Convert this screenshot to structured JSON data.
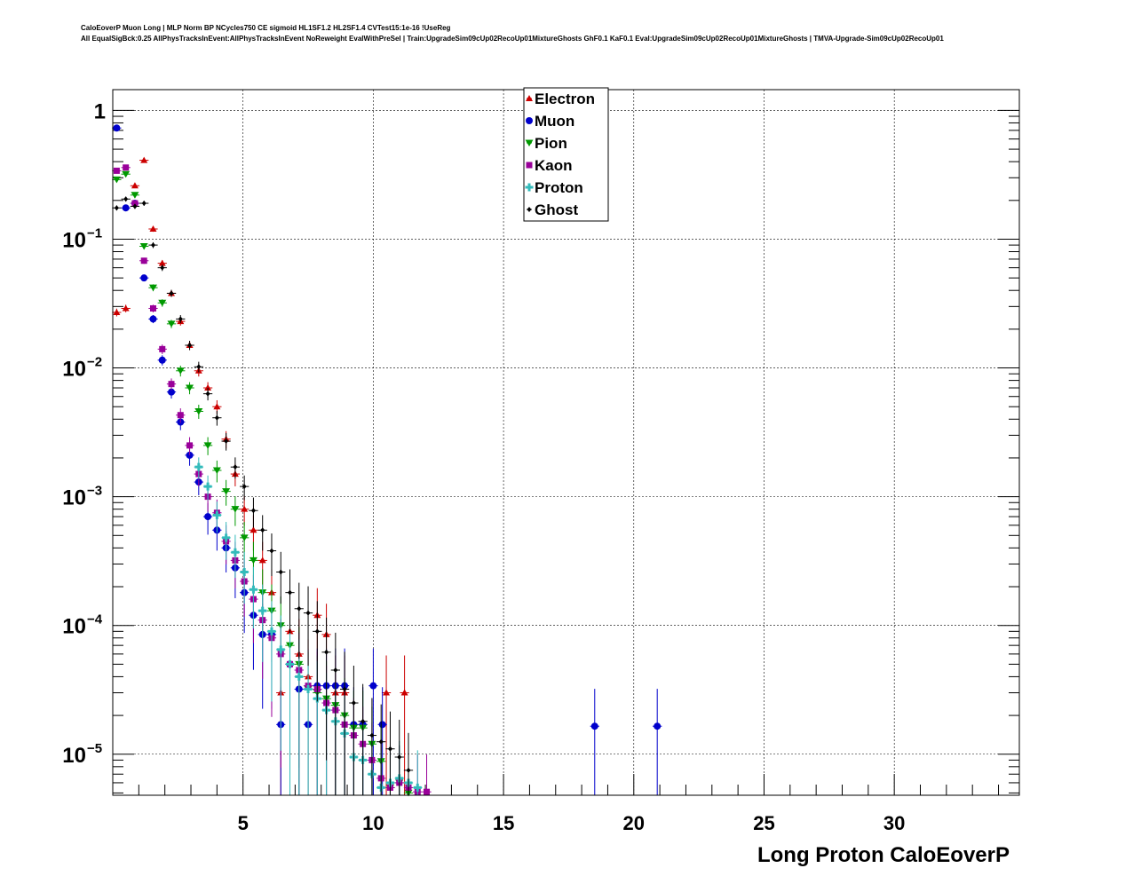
{
  "title_lines": [
    "CaloEoverP Muon Long | MLP Norm BP NCycles750 CE sigmoid HL1SF1.2 HL2SF1.4 CVTest15:1e-16 !UseReg",
    "All EqualSigBck:0.25 AllPhysTracksInEvent:AllPhysTracksInEvent NoReweight EvalWithPreSel | Train:UpgradeSim09cUp02RecoUp01MixtureGhosts GhF0.1 KaF0.1 Eval:UpgradeSim09cUp02RecoUp01MixtureGhosts | TMVA-Upgrade-Sim09cUp02RecoUp01"
  ],
  "chart_data": {
    "type": "scatter",
    "title": "CaloEoverP Muon Long | MLP Norm BP NCycles750 CE sigmoid HL1SF1.2 HL2SF1.4 CVTest15:1e-16 !UseReg",
    "xlabel": "Long Proton CaloEoverP",
    "ylabel": "",
    "xlim": [
      0,
      34.8
    ],
    "ylim": [
      4.8e-06,
      1.45
    ],
    "y_scale": "log",
    "grid": true,
    "legend_position": "top-center",
    "x_ticks": [
      5,
      10,
      15,
      20,
      25,
      30
    ],
    "x_tick_labels": [
      "5",
      "10",
      "15",
      "20",
      "25",
      "30"
    ],
    "y_ticks": [
      1,
      0.1,
      0.01,
      0.001,
      0.0001,
      1e-05
    ],
    "y_tick_labels": [
      {
        "base": "1",
        "exp": ""
      },
      {
        "base": "10",
        "exp": "−1"
      },
      {
        "base": "10",
        "exp": "−2"
      },
      {
        "base": "10",
        "exp": "−3"
      },
      {
        "base": "10",
        "exp": "−4"
      },
      {
        "base": "10",
        "exp": "−5"
      }
    ],
    "series": [
      {
        "name": "Electron",
        "color": "#cc0000",
        "marker": "triangle-up",
        "points": [
          [
            0.15,
            0.027
          ],
          [
            0.5,
            0.029
          ],
          [
            0.85,
            0.26
          ],
          [
            1.2,
            0.41
          ],
          [
            1.55,
            0.12
          ],
          [
            1.9,
            0.065
          ],
          [
            2.25,
            0.038
          ],
          [
            2.6,
            0.023
          ],
          [
            2.95,
            0.015
          ],
          [
            3.3,
            0.0095
          ],
          [
            3.65,
            0.007
          ],
          [
            4.0,
            0.005
          ],
          [
            4.35,
            0.0028
          ],
          [
            4.7,
            0.0015
          ],
          [
            5.05,
            0.0008
          ],
          [
            5.4,
            0.00055
          ],
          [
            5.75,
            0.00032
          ],
          [
            6.1,
            0.00018
          ],
          [
            6.45,
            3e-05
          ],
          [
            6.8,
            9e-05
          ],
          [
            7.15,
            6e-05
          ],
          [
            7.5,
            4e-05
          ],
          [
            7.85,
            0.00012
          ],
          [
            8.2,
            8.5e-05
          ],
          [
            8.55,
            3e-05
          ],
          [
            8.9,
            3e-05
          ],
          [
            10.5,
            3e-05
          ],
          [
            11.2,
            3e-05
          ]
        ]
      },
      {
        "name": "Muon",
        "color": "#0000cc",
        "marker": "circle",
        "points": [
          [
            0.15,
            0.73
          ],
          [
            0.5,
            0.175
          ],
          [
            0.85,
            0.19
          ],
          [
            1.2,
            0.05
          ],
          [
            1.55,
            0.024
          ],
          [
            1.9,
            0.0115
          ],
          [
            2.25,
            0.0065
          ],
          [
            2.6,
            0.0038
          ],
          [
            2.95,
            0.0021
          ],
          [
            3.3,
            0.0013
          ],
          [
            3.65,
            0.0007
          ],
          [
            4.0,
            0.00055
          ],
          [
            4.35,
            0.0004
          ],
          [
            4.7,
            0.00028
          ],
          [
            5.05,
            0.00018
          ],
          [
            5.4,
            0.00012
          ],
          [
            5.75,
            8.5e-05
          ],
          [
            6.1,
            8.5e-05
          ],
          [
            6.45,
            1.7e-05
          ],
          [
            6.8,
            5e-05
          ],
          [
            7.15,
            3.2e-05
          ],
          [
            7.5,
            1.7e-05
          ],
          [
            7.85,
            3.4e-05
          ],
          [
            8.2,
            3.4e-05
          ],
          [
            8.55,
            3.4e-05
          ],
          [
            8.9,
            3.4e-05
          ],
          [
            9.25,
            1.7e-05
          ],
          [
            9.6,
            1.7e-05
          ],
          [
            10.0,
            3.4e-05
          ],
          [
            10.35,
            1.7e-05
          ],
          [
            18.5,
            1.65e-05
          ],
          [
            20.9,
            1.65e-05
          ]
        ]
      },
      {
        "name": "Pion",
        "color": "#009900",
        "marker": "triangle-down",
        "points": [
          [
            0.15,
            0.29
          ],
          [
            0.5,
            0.32
          ],
          [
            0.85,
            0.22
          ],
          [
            1.2,
            0.088
          ],
          [
            1.55,
            0.042
          ],
          [
            1.9,
            0.032
          ],
          [
            2.25,
            0.022
          ],
          [
            2.6,
            0.0095
          ],
          [
            2.95,
            0.007
          ],
          [
            3.3,
            0.0046
          ],
          [
            3.65,
            0.0025
          ],
          [
            4.0,
            0.0016
          ],
          [
            4.35,
            0.0011
          ],
          [
            4.7,
            0.0008
          ],
          [
            5.05,
            0.00048
          ],
          [
            5.4,
            0.00032
          ],
          [
            5.75,
            0.00018
          ],
          [
            6.1,
            0.00013
          ],
          [
            6.45,
            0.0001
          ],
          [
            6.8,
            7e-05
          ],
          [
            7.15,
            5e-05
          ],
          [
            7.5,
            3.2e-05
          ],
          [
            7.85,
            3e-05
          ],
          [
            8.2,
            2.7e-05
          ],
          [
            8.55,
            2.4e-05
          ],
          [
            8.9,
            2e-05
          ],
          [
            9.25,
            1.6e-05
          ],
          [
            9.6,
            1.6e-05
          ],
          [
            9.95,
            1.2e-05
          ],
          [
            10.3,
            8.8e-06
          ],
          [
            10.65,
            5.5e-06
          ],
          [
            11.0,
            6e-06
          ],
          [
            11.35,
            5e-06
          ]
        ]
      },
      {
        "name": "Kaon",
        "color": "#990099",
        "marker": "square",
        "points": [
          [
            0.15,
            0.34
          ],
          [
            0.5,
            0.36
          ],
          [
            0.85,
            0.19
          ],
          [
            1.2,
            0.068
          ],
          [
            1.55,
            0.029
          ],
          [
            1.9,
            0.014
          ],
          [
            2.25,
            0.0075
          ],
          [
            2.6,
            0.0043
          ],
          [
            2.95,
            0.0025
          ],
          [
            3.3,
            0.0015
          ],
          [
            3.65,
            0.001
          ],
          [
            4.0,
            0.00075
          ],
          [
            4.35,
            0.00045
          ],
          [
            4.7,
            0.00032
          ],
          [
            5.05,
            0.00022
          ],
          [
            5.4,
            0.00016
          ],
          [
            5.75,
            0.00011
          ],
          [
            6.1,
            8e-05
          ],
          [
            6.45,
            6e-05
          ],
          [
            6.8,
            5e-05
          ],
          [
            7.15,
            4.5e-05
          ],
          [
            7.5,
            3.4e-05
          ],
          [
            7.85,
            3.2e-05
          ],
          [
            8.2,
            2.5e-05
          ],
          [
            8.55,
            2.2e-05
          ],
          [
            8.9,
            1.7e-05
          ],
          [
            9.25,
            1.4e-05
          ],
          [
            9.6,
            1.2e-05
          ],
          [
            9.95,
            9e-06
          ],
          [
            10.3,
            6.5e-06
          ],
          [
            10.65,
            5.5e-06
          ],
          [
            11.0,
            6e-06
          ],
          [
            11.35,
            5.5e-06
          ],
          [
            11.7,
            5.1e-06
          ],
          [
            12.05,
            5.1e-06
          ]
        ]
      },
      {
        "name": "Proton",
        "color": "#33bbbb",
        "marker": "cross",
        "points": [
          [
            3.3,
            0.0017
          ],
          [
            3.65,
            0.0012
          ],
          [
            4.0,
            0.00072
          ],
          [
            4.35,
            0.00048
          ],
          [
            4.7,
            0.00037
          ],
          [
            5.05,
            0.00026
          ],
          [
            5.4,
            0.00019
          ],
          [
            5.75,
            0.00013
          ],
          [
            6.1,
            9e-05
          ],
          [
            6.45,
            6.5e-05
          ],
          [
            6.8,
            5e-05
          ],
          [
            7.15,
            4e-05
          ],
          [
            7.5,
            3.2e-05
          ],
          [
            7.85,
            2.7e-05
          ],
          [
            8.2,
            2.2e-05
          ],
          [
            8.55,
            1.8e-05
          ],
          [
            8.9,
            1.45e-05
          ],
          [
            9.25,
            9.5e-06
          ],
          [
            9.6,
            9e-06
          ],
          [
            9.95,
            7e-06
          ],
          [
            10.3,
            5.5e-06
          ],
          [
            10.65,
            6e-06
          ],
          [
            11.0,
            6.5e-06
          ],
          [
            11.35,
            6e-06
          ],
          [
            11.7,
            5.5e-06
          ]
        ]
      },
      {
        "name": "Ghost",
        "color": "#000000",
        "marker": "diamond",
        "points": [
          [
            0.15,
            0.175
          ],
          [
            0.5,
            0.205
          ],
          [
            0.85,
            0.18
          ],
          [
            1.2,
            0.19
          ],
          [
            1.55,
            0.09
          ],
          [
            1.9,
            0.06
          ],
          [
            2.25,
            0.038
          ],
          [
            2.6,
            0.024
          ],
          [
            2.95,
            0.015
          ],
          [
            3.3,
            0.0102
          ],
          [
            3.65,
            0.0063
          ],
          [
            4.0,
            0.0041
          ],
          [
            4.35,
            0.0027
          ],
          [
            4.7,
            0.0017
          ],
          [
            5.05,
            0.0012
          ],
          [
            5.4,
            0.00078
          ],
          [
            5.75,
            0.00055
          ],
          [
            6.1,
            0.00038
          ],
          [
            6.45,
            0.00026
          ],
          [
            6.8,
            0.00018
          ],
          [
            7.15,
            0.000135
          ],
          [
            7.5,
            0.000125
          ],
          [
            7.85,
            9e-05
          ],
          [
            8.2,
            6.2e-05
          ],
          [
            8.55,
            4.5e-05
          ],
          [
            8.9,
            3.2e-05
          ],
          [
            9.25,
            2.5e-05
          ],
          [
            9.6,
            1.8e-05
          ],
          [
            9.95,
            1.4e-05
          ],
          [
            10.3,
            1.25e-05
          ],
          [
            10.65,
            1.1e-05
          ],
          [
            11.0,
            9.5e-06
          ],
          [
            11.35,
            7.5e-06
          ]
        ]
      }
    ]
  }
}
